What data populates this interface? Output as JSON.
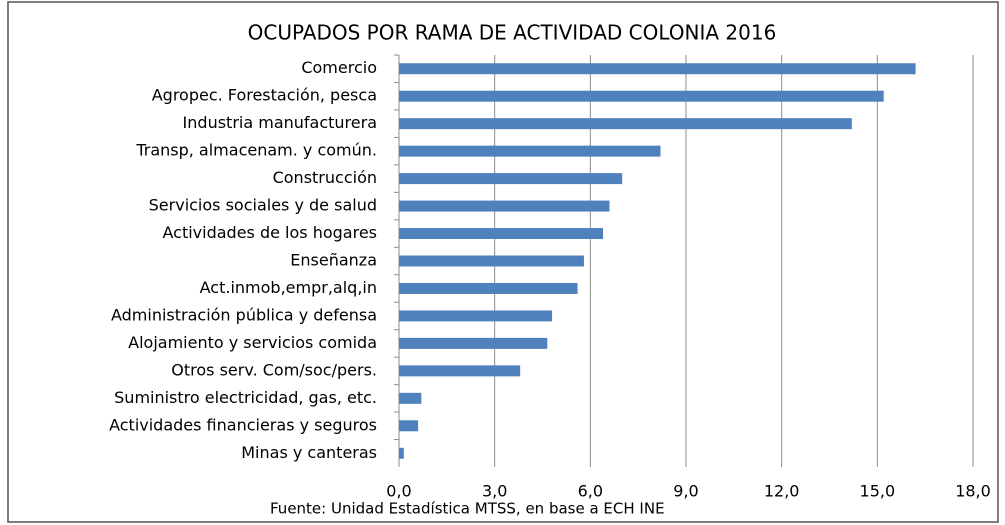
{
  "chart_data": {
    "type": "bar",
    "orientation": "horizontal",
    "title": "OCUPADOS POR RAMA DE ACTIVIDAD COLONIA 2016",
    "source": "Fuente: Unidad Estadística MTSS, en base a ECH INE",
    "categories": [
      "Comercio",
      "Agropec. Forestación, pesca",
      "Industria manufacturera",
      "Transp, almacenam. y común.",
      "Construcción",
      "Servicios sociales y de salud",
      "Actividades de los hogares",
      "Enseñanza",
      "Act.inmob,empr,alq,in",
      "Administración pública y defensa",
      "Alojamiento y servicios comida",
      "Otros serv. Com/soc/pers.",
      "Suministro electricidad, gas, etc.",
      "Actividades financieras y seguros",
      "Minas y canteras"
    ],
    "values": [
      16.2,
      15.2,
      14.2,
      8.2,
      7.0,
      6.6,
      6.4,
      5.8,
      5.6,
      4.8,
      4.65,
      3.8,
      0.7,
      0.6,
      0.15
    ],
    "color": "#4f81bd",
    "xlim": [
      0,
      18
    ],
    "xticks": [
      {
        "value": 0,
        "label": "0,0"
      },
      {
        "value": 3,
        "label": "3,0"
      },
      {
        "value": 6,
        "label": "6,0"
      },
      {
        "value": 9,
        "label": "9,0"
      },
      {
        "value": 12,
        "label": "12,0"
      },
      {
        "value": 15,
        "label": "15,0"
      },
      {
        "value": 18,
        "label": "18,0"
      }
    ],
    "grid": true
  }
}
